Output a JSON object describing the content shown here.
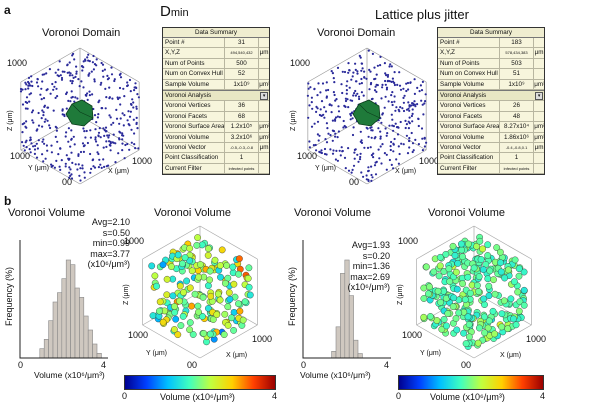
{
  "panel_labels": {
    "a": "a",
    "b": "b"
  },
  "titles": {
    "dmin": "D",
    "dmin_sub": "min",
    "lattice": "Lattice plus jitter"
  },
  "domain_left": {
    "title": "Voronoi Domain",
    "axis_top": "1000",
    "axis_left": "1000",
    "axis_right": "1000",
    "z_label": "Z (μm)",
    "y_label": "Y (μm)",
    "x_label": "X (μm)",
    "origin": "00"
  },
  "domain_right": {
    "title": "Voronoi Domain",
    "axis_top": "1000",
    "axis_left": "1000",
    "axis_right": "1000",
    "z_label": "Z (μm)",
    "y_label": "Y (μm)",
    "x_label": "X (μm)",
    "origin": "00"
  },
  "table_left": {
    "header": "Data Summary",
    "rows": [
      {
        "k": "Point #",
        "v": "31",
        "u": ""
      },
      {
        "k": "X,Y,Z",
        "v": "494,540,432",
        "u": "μm",
        "small": true
      },
      {
        "k": "Num of Points",
        "v": "500",
        "u": ""
      },
      {
        "k": "Num on Convex Hull",
        "v": "52",
        "u": ""
      },
      {
        "k": "Sample Volume",
        "v": "1x10⁹",
        "u": "μm³"
      }
    ],
    "section": "Voronoi Analysis",
    "rows2": [
      {
        "k": "Voronoi Vertices",
        "v": "36",
        "u": ""
      },
      {
        "k": "Voronoi Facets",
        "v": "68",
        "u": ""
      },
      {
        "k": "Voronoi Surface Area",
        "v": "1.2x10⁵",
        "u": "μm²"
      },
      {
        "k": "Voronoi Volume",
        "v": "3.2x10⁶",
        "u": "μm³"
      },
      {
        "k": "Voronoi Vector",
        "v": "-0.5,-0.3,-0.8",
        "u": "μm",
        "small": true
      },
      {
        "k": "Point Classification",
        "v": "1",
        "u": ""
      },
      {
        "k": "Current Filter",
        "v": "infected points",
        "u": "",
        "small": true
      }
    ]
  },
  "table_right": {
    "header": "Data Summary",
    "rows": [
      {
        "k": "Point #",
        "v": "183",
        "u": ""
      },
      {
        "k": "X,Y,Z",
        "v": "578,434,383",
        "u": "μm",
        "small": true
      },
      {
        "k": "Num of Points",
        "v": "503",
        "u": ""
      },
      {
        "k": "Num on Convex Hull",
        "v": "51",
        "u": ""
      },
      {
        "k": "Sample Volume",
        "v": "1x10⁹",
        "u": "μm³"
      }
    ],
    "section": "Voronoi Analysis",
    "rows2": [
      {
        "k": "Voronoi Vertices",
        "v": "26",
        "u": ""
      },
      {
        "k": "Voronoi Facets",
        "v": "48",
        "u": ""
      },
      {
        "k": "Voronoi Surface Area",
        "v": "8.27x10⁴",
        "u": "μm²"
      },
      {
        "k": "Voronoi Volume",
        "v": "1.86x10⁶",
        "u": "μm³"
      },
      {
        "k": "Voronoi Vector",
        "v": "-0.4,-0.8,0.1",
        "u": "μm",
        "small": true
      },
      {
        "k": "Point Classification",
        "v": "1",
        "u": ""
      },
      {
        "k": "Current Filter",
        "v": "infected points",
        "u": "",
        "small": true
      }
    ]
  },
  "vol_titles": {
    "t1": "Voronoi Volume",
    "t2": "Voronoi Volume",
    "t3": "Voronoi Volume",
    "t4": "Voronoi Volume"
  },
  "hist_left": {
    "ylabel": "Frequency (%)",
    "xlabel": "Volume (x10⁶/μm³)",
    "tick_min": "0",
    "tick_max": "4",
    "stats": [
      "Avg=2.10",
      "s=0.50",
      "min=0.99",
      "max=3.77",
      "(x10⁶/μm³)"
    ]
  },
  "hist_right": {
    "ylabel": "Frequency (%)",
    "xlabel": "Volume (x10⁶/μm³)",
    "tick_min": "0",
    "tick_max": "4",
    "stats": [
      "Avg=1.93",
      "s=0.20",
      "min=1.36",
      "max=2.69",
      "(x10⁶/μm³)"
    ]
  },
  "scatter_left": {
    "axis_top": "1000",
    "axis_left": "1000",
    "axis_right": "1000",
    "z_label": "Z (μm)",
    "y_label": "Y (μm)",
    "x_label": "X (μm)",
    "origin": "00"
  },
  "scatter_right": {
    "axis_top": "1000",
    "axis_left": "1000",
    "axis_right": "1000",
    "z_label": "Z (μm)",
    "y_label": "Y (μm)",
    "x_label": "X (μm)",
    "origin": "00"
  },
  "colorbar_left": {
    "min": "0",
    "max": "4",
    "label": "Volume (x10⁶/μm³)"
  },
  "colorbar_right": {
    "min": "0",
    "max": "4",
    "label": "Volume (x10⁶/μm³)"
  },
  "colors": {
    "domain_point": "#2a2a9a",
    "cell": "#1f7a3a",
    "hist_bar": "#cfc8c0",
    "table_bg": "#f7f5dc"
  },
  "chart_data": [
    {
      "type": "bar",
      "title": "Voronoi Volume",
      "xlabel": "Volume (x10⁶/μm³)",
      "ylabel": "Frequency (%)",
      "xlim": [
        0,
        4
      ],
      "bin_edges": [
        0.9,
        1.1,
        1.3,
        1.5,
        1.7,
        1.9,
        2.1,
        2.3,
        2.5,
        2.7,
        2.9,
        3.1,
        3.3,
        3.5,
        3.7
      ],
      "values": [
        2,
        4,
        8,
        12,
        14,
        17,
        21,
        20,
        15,
        13,
        9,
        6,
        3,
        1
      ]
    },
    {
      "type": "bar",
      "title": "Voronoi Volume",
      "xlabel": "Volume (x10⁶/μm³)",
      "ylabel": "Frequency (%)",
      "xlim": [
        0,
        4
      ],
      "bin_edges": [
        1.3,
        1.5,
        1.7,
        1.9,
        2.1,
        2.3,
        2.5,
        2.7
      ],
      "values": [
        3,
        14,
        38,
        44,
        28,
        8,
        2
      ]
    }
  ]
}
